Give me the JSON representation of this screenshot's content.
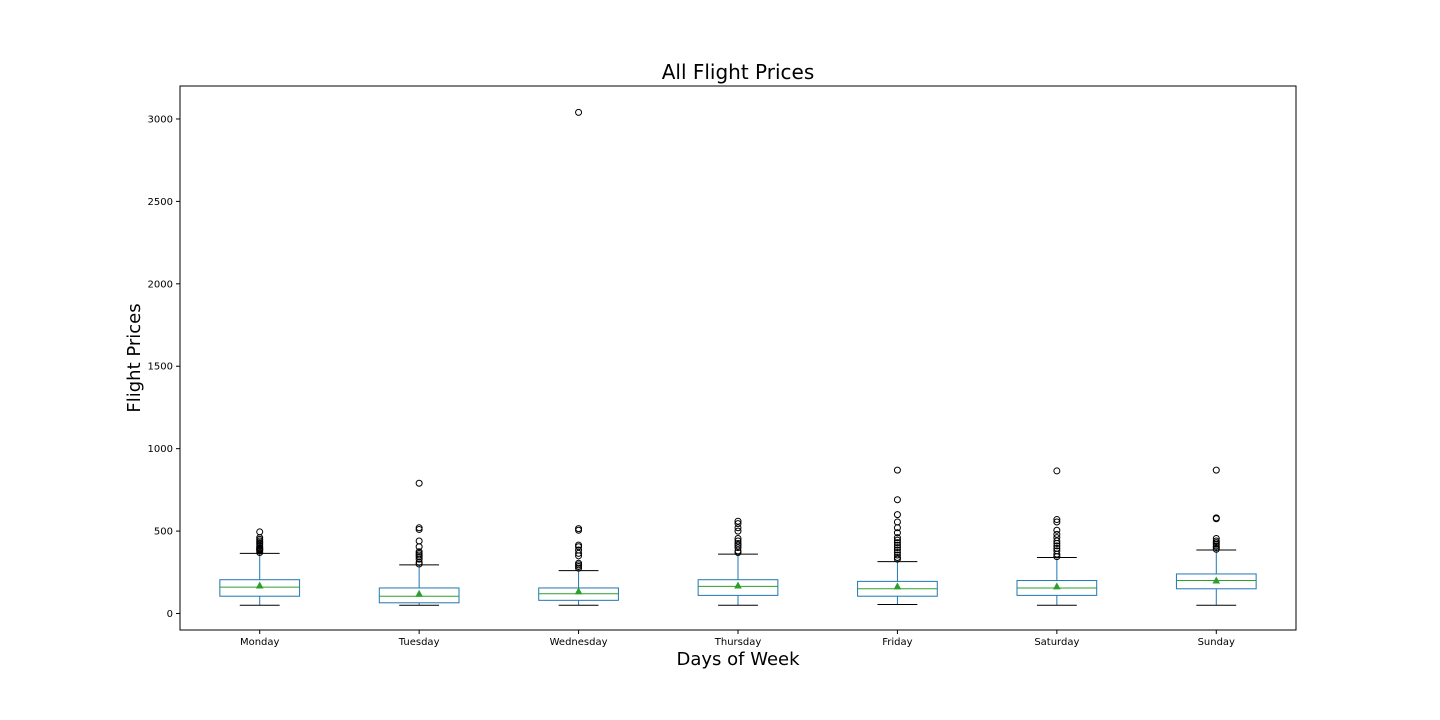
{
  "chart_data": {
    "type": "box",
    "title": "All Flight Prices",
    "xlabel": "Days of Week",
    "ylabel": "Flight Prices",
    "ylim": [
      -100,
      3200
    ],
    "yticks": [
      0,
      500,
      1000,
      1500,
      2000,
      2500,
      3000
    ],
    "grid": false,
    "colors": {
      "box": "#1f77b4",
      "median": "#2ca02c",
      "mean": "#2ca02c",
      "whisker": "#1f77b4",
      "cap": "#000000",
      "flier": "#000000"
    },
    "categories": [
      "Monday",
      "Tuesday",
      "Wednesday",
      "Thursday",
      "Friday",
      "Saturday",
      "Sunday"
    ],
    "boxes": [
      {
        "label": "Monday",
        "whisker_low": 50,
        "q1": 105,
        "median": 160,
        "q3": 205,
        "whisker_high": 365,
        "mean": 170,
        "outliers": [
          370,
          380,
          385,
          390,
          395,
          400,
          410,
          420,
          430,
          440,
          450,
          460,
          495
        ]
      },
      {
        "label": "Tuesday",
        "whisker_low": 50,
        "q1": 65,
        "median": 105,
        "q3": 155,
        "whisker_high": 295,
        "mean": 120,
        "outliers": [
          300,
          310,
          330,
          345,
          355,
          365,
          375,
          405,
          440,
          510,
          520,
          790
        ]
      },
      {
        "label": "Wednesday",
        "whisker_low": 50,
        "q1": 80,
        "median": 120,
        "q3": 155,
        "whisker_high": 260,
        "mean": 135,
        "outliers": [
          275,
          285,
          295,
          305,
          350,
          365,
          385,
          405,
          415,
          505,
          515,
          3040
        ]
      },
      {
        "label": "Thursday",
        "whisker_low": 50,
        "q1": 110,
        "median": 165,
        "q3": 205,
        "whisker_high": 360,
        "mean": 170,
        "outliers": [
          370,
          380,
          400,
          415,
          425,
          440,
          455,
          500,
          520,
          545,
          560
        ]
      },
      {
        "label": "Friday",
        "whisker_low": 55,
        "q1": 105,
        "median": 150,
        "q3": 195,
        "whisker_high": 315,
        "mean": 165,
        "outliers": [
          330,
          340,
          355,
          370,
          385,
          400,
          415,
          430,
          445,
          460,
          490,
          520,
          555,
          600,
          690,
          870
        ]
      },
      {
        "label": "Saturday",
        "whisker_low": 50,
        "q1": 110,
        "median": 155,
        "q3": 200,
        "whisker_high": 340,
        "mean": 165,
        "outliers": [
          345,
          360,
          380,
          395,
          410,
          425,
          440,
          460,
          480,
          505,
          555,
          570,
          865
        ]
      },
      {
        "label": "Sunday",
        "whisker_low": 50,
        "q1": 150,
        "median": 200,
        "q3": 240,
        "whisker_high": 385,
        "mean": 200,
        "outliers": [
          390,
          400,
          410,
          420,
          430,
          440,
          455,
          575,
          580,
          870
        ]
      }
    ]
  }
}
